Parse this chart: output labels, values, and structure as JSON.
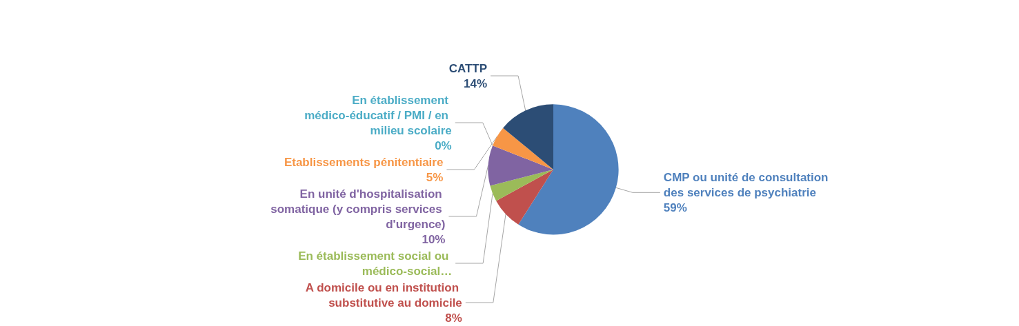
{
  "chart_data": {
    "type": "pie",
    "categories": [
      "CMP ou unité de consultation des services de psychiatrie",
      "A domicile ou en institution substitutive au domicile",
      "En établissement social ou médico-social…",
      "En unité d'hospitalisation somatique (y compris services d'urgence)",
      "En établissement médico-éducatif / PMI / en milieu scolaire",
      "Etablissements pénitentiaire",
      "CATTP"
    ],
    "values": [
      59,
      8,
      4,
      10,
      0,
      5,
      14
    ],
    "value_labels": [
      "59%",
      "8%",
      null,
      "10%",
      "0%",
      "5%",
      "14%"
    ],
    "colors": [
      "#4f81bd",
      "#c0504d",
      "#9bbb59",
      "#8064a2",
      "#4bacc6",
      "#f79646",
      "#2c4d75"
    ],
    "legend": false
  }
}
